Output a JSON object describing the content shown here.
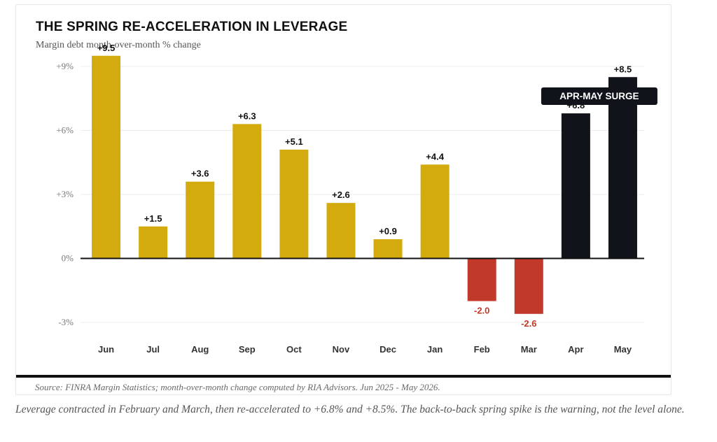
{
  "chart_data": {
    "type": "bar",
    "title": "THE SPRING RE-ACCELERATION IN LEVERAGE",
    "subtitle": "Margin debt month-over-month % change",
    "categories": [
      "Jun",
      "Jul",
      "Aug",
      "Sep",
      "Oct",
      "Nov",
      "Dec",
      "Jan",
      "Feb",
      "Mar",
      "Apr",
      "May"
    ],
    "values": [
      9.5,
      1.5,
      3.6,
      6.3,
      5.1,
      2.6,
      0.9,
      4.4,
      -2.0,
      -2.6,
      6.8,
      8.5
    ],
    "value_labels": [
      "+9.5",
      "+1.5",
      "+3.6",
      "+6.3",
      "+5.1",
      "+2.6",
      "+0.9",
      "+4.4",
      "-2.0",
      "-2.6",
      "+6.8",
      "+8.5"
    ],
    "ylim": [
      -3,
      9
    ],
    "yticks": [
      9,
      6,
      3,
      0,
      -3
    ],
    "ytick_labels": [
      "+9%",
      "+6%",
      "+3%",
      "0%",
      "-3%"
    ],
    "grid": true,
    "colors": {
      "positive": "#d4ab0e",
      "negative": "#c0392b",
      "highlight": "#10131a",
      "grid": "#ececec",
      "baseline": "#111111"
    },
    "highlight_categories": [
      "Apr",
      "May"
    ],
    "annotation": {
      "text": "APR-MAY SURGE",
      "target_categories": [
        "Apr",
        "May"
      ]
    }
  },
  "source": "Source: FINRA Margin Statistics; month-over-month change computed by RIA Advisors. Jun 2025 - May 2026.",
  "caption": "Leverage contracted in February and March, then re-accelerated to +6.8% and +8.5%. The back-to-back spring spike is the warning, not the level alone."
}
